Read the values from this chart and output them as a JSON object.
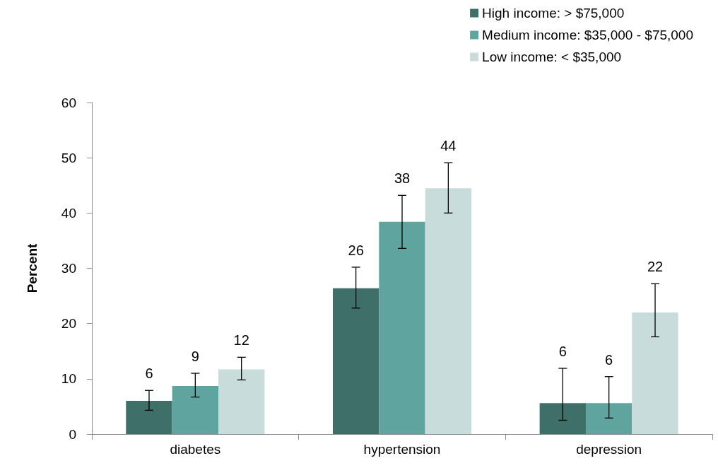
{
  "chart_data": {
    "type": "bar",
    "ylabel": "Percent",
    "categories": [
      "diabetes",
      "hypertension",
      "depression"
    ],
    "series": [
      {
        "name": "High income: > $75,000",
        "color": "#3f6f69",
        "values": [
          6.0,
          26.4,
          5.6
        ],
        "errors": [
          [
            4.3,
            7.9
          ],
          [
            22.8,
            30.2
          ],
          [
            2.5,
            11.9
          ]
        ],
        "value_labels": [
          "6",
          "26",
          "6"
        ]
      },
      {
        "name": "Medium income: $35,000 - $75,000",
        "color": "#5fa49f",
        "values": [
          8.7,
          38.4,
          5.6
        ],
        "errors": [
          [
            6.7,
            11.0
          ],
          [
            33.6,
            43.2
          ],
          [
            2.9,
            10.4
          ]
        ],
        "value_labels": [
          "9",
          "38",
          "6"
        ]
      },
      {
        "name": "Low income: < $35,000",
        "color": "#c8dcdb",
        "values": [
          11.7,
          44.5,
          22.0
        ],
        "errors": [
          [
            9.8,
            13.9
          ],
          [
            40.0,
            49.1
          ],
          [
            17.6,
            27.2
          ]
        ],
        "value_labels": [
          "12",
          "44",
          "22"
        ]
      }
    ],
    "ylim": [
      0,
      60
    ],
    "yticks": [
      0,
      10,
      20,
      30,
      40,
      50,
      60
    ],
    "grid": false,
    "legend": "top right"
  }
}
